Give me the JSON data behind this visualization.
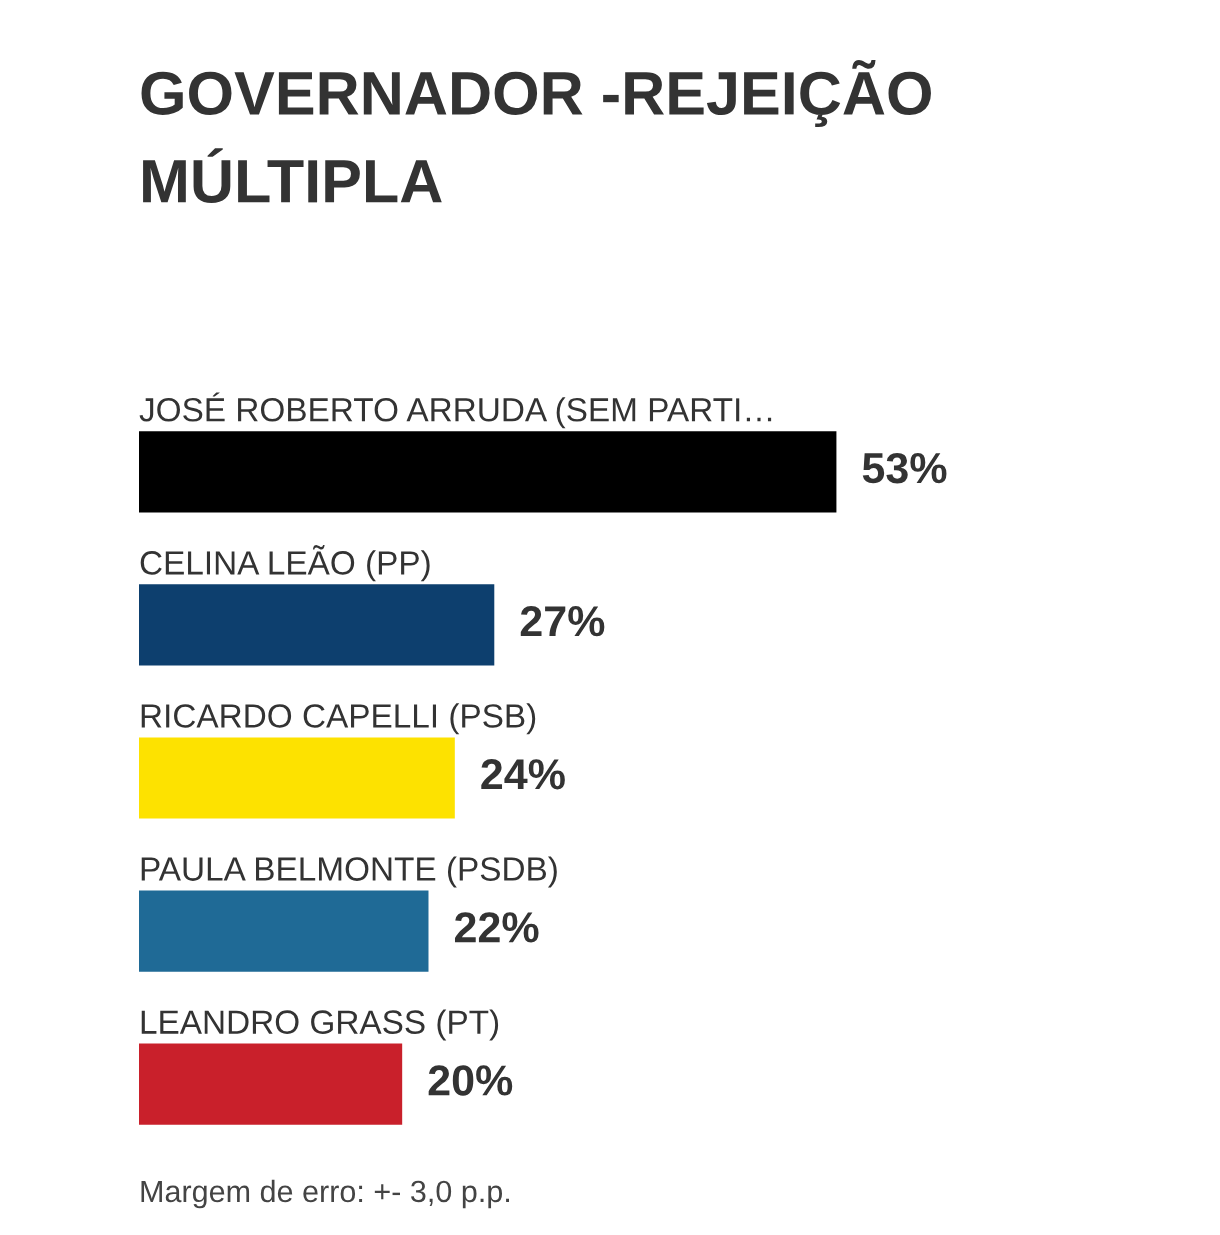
{
  "chart_data": {
    "type": "bar",
    "orientation": "horizontal",
    "title": "GOVERNADOR -REJEIÇÃO MÚLTIPLA",
    "categories": [
      "JOSÉ ROBERTO ARRUDA (SEM PARTI…",
      "CELINA LEÃO (PP)",
      "RICARDO CAPELLI (PSB)",
      "PAULA BELMONTE (PSDB)",
      "LEANDRO GRASS (PT)"
    ],
    "values": [
      53,
      27,
      24,
      22,
      20
    ],
    "colors": [
      "#000000",
      "#0d3f6e",
      "#fde200",
      "#1f6a96",
      "#c9202b"
    ],
    "value_labels": [
      "53%",
      "27%",
      "24%",
      "22%",
      "20%"
    ],
    "annotations": [
      "Margem de erro: +- 3,0 p.p."
    ]
  }
}
